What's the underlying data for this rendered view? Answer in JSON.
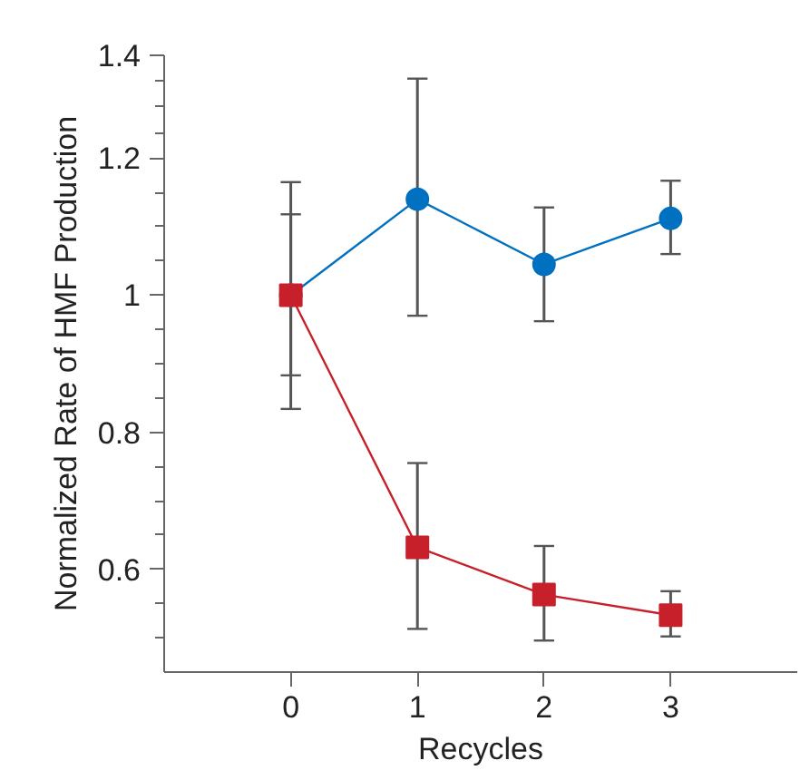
{
  "chart_data": {
    "type": "line",
    "xlabel": "Recycles",
    "ylabel": "Normalized Rate of HMF Production",
    "x": [
      0,
      1,
      2,
      3
    ],
    "xlim": [
      -1,
      4
    ],
    "xticks": [
      0,
      1,
      2,
      3
    ],
    "ylim": [
      0.45,
      1.35
    ],
    "yticks": [
      0.6,
      0.8,
      1,
      1.2,
      {
        "value": 1.35,
        "label": "1.4"
      }
    ],
    "grid": false,
    "line_style": "solid",
    "series": [
      {
        "color": "#0070c0",
        "marker": "circle",
        "values": [
          1.0,
          1.14,
          1.045,
          1.112
        ],
        "errors": [
          [
            0.883,
            1.118
          ],
          [
            0.97,
            1.316
          ],
          [
            0.962,
            1.128
          ],
          [
            1.06,
            1.167
          ]
        ]
      },
      {
        "color": "#c8202a",
        "marker": "square",
        "values": [
          1.0,
          0.632,
          0.563,
          0.533
        ],
        "errors": [
          [
            0.834,
            1.165
          ],
          [
            0.513,
            0.755
          ],
          [
            0.496,
            0.634
          ],
          [
            0.502,
            0.568
          ]
        ]
      }
    ]
  }
}
